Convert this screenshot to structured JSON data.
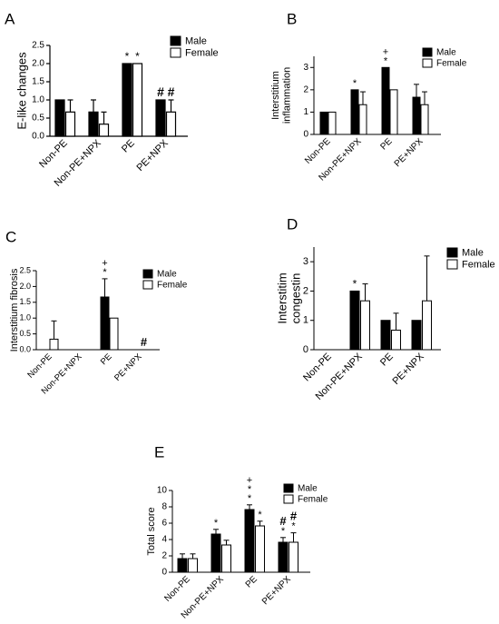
{
  "legend_male": "Male",
  "legend_female": "Female",
  "colors": {
    "male": "#000000",
    "female": "#ffffff",
    "stroke": "#000000"
  },
  "chart_data": [
    {
      "id": "A",
      "panel_label": "A",
      "type": "bar",
      "categories": [
        "Non-PE",
        "Non-PE+NPX",
        "PE",
        "PE+NPX"
      ],
      "ylabel": "E-like changes",
      "ylim": [
        0,
        2.5
      ],
      "yticks": [
        0,
        0.5,
        1.0,
        1.5,
        2.0,
        2.5
      ],
      "ytick_labels": [
        "0.0",
        "0.5",
        "1.0",
        "1.5",
        "2.0",
        "2.5"
      ],
      "series": [
        {
          "name": "Male",
          "values": [
            1,
            0.667,
            2,
            1
          ],
          "errors": [
            0,
            0.333,
            0,
            0
          ],
          "marks": [
            [],
            [],
            [
              "*"
            ],
            [
              "#"
            ]
          ]
        },
        {
          "name": "Female",
          "values": [
            0.667,
            0.333,
            2,
            0.667
          ],
          "errors": [
            0.333,
            0.333,
            0,
            0.333
          ],
          "marks": [
            [],
            [],
            [
              "*"
            ],
            [
              "#"
            ]
          ]
        }
      ]
    },
    {
      "id": "B",
      "panel_label": "B",
      "type": "bar",
      "categories": [
        "Non-PE",
        "Non-PE+NPX",
        "PE",
        "PE+NPX"
      ],
      "ylabel": "Interstitium inflammation",
      "ylabel_lines": [
        "Interstitium",
        "inflammation"
      ],
      "ylim": [
        0,
        3.5
      ],
      "yticks": [
        0,
        1,
        2,
        3
      ],
      "ytick_labels": [
        "0",
        "1",
        "2",
        "3"
      ],
      "series": [
        {
          "name": "Male",
          "values": [
            1,
            2,
            3,
            1.667
          ],
          "errors": [
            0,
            0,
            0,
            0.577
          ],
          "marks": [
            [],
            [
              "*"
            ],
            [
              "*",
              "+"
            ],
            []
          ]
        },
        {
          "name": "Female",
          "values": [
            1,
            1.333,
            2,
            1.333
          ],
          "errors": [
            0,
            0.577,
            0,
            0.577
          ],
          "marks": [
            [],
            [],
            [],
            []
          ]
        }
      ]
    },
    {
      "id": "C",
      "panel_label": "C",
      "type": "bar",
      "categories": [
        "Non-PE",
        "Non-PE+NPX",
        "PE",
        "PE+NPX"
      ],
      "ylabel": "Interstitium fibrosis",
      "ylim": [
        0,
        2.5
      ],
      "yticks": [
        0,
        0.5,
        1.0,
        1.5,
        2.0,
        2.5
      ],
      "ytick_labels": [
        "0.0",
        "0.5",
        "1.0",
        "1.5",
        "2.0",
        "2.5"
      ],
      "series": [
        {
          "name": "Male",
          "values": [
            0,
            0,
            1.667,
            0
          ],
          "errors": [
            0,
            0,
            0.577,
            0
          ],
          "marks": [
            [],
            [],
            [
              "*",
              "+"
            ],
            []
          ]
        },
        {
          "name": "Female",
          "values": [
            0.333,
            0,
            1,
            0
          ],
          "errors": [
            0.577,
            0,
            0,
            0
          ],
          "marks": [
            [],
            [],
            [],
            [
              "#"
            ]
          ]
        }
      ]
    },
    {
      "id": "D",
      "panel_label": "D",
      "type": "bar",
      "categories": [
        "Non-PE",
        "Non-PE+NPX",
        "PE",
        "PE+NPX"
      ],
      "ylabel": "Interstitim congestin",
      "ylabel_lines": [
        "Interstitim",
        "congestin"
      ],
      "ylim": [
        0,
        3.5
      ],
      "yticks": [
        0,
        1,
        2,
        3
      ],
      "ytick_labels": [
        "0",
        "1",
        "2",
        "3"
      ],
      "series": [
        {
          "name": "Male",
          "values": [
            0,
            2,
            1,
            1
          ],
          "errors": [
            0,
            0,
            0,
            0
          ],
          "marks": [
            [],
            [
              "*"
            ],
            [],
            []
          ]
        },
        {
          "name": "Female",
          "values": [
            0,
            1.667,
            0.667,
            1.667
          ],
          "errors": [
            0,
            0.577,
            0.577,
            1.528
          ],
          "marks": [
            [],
            [],
            [],
            []
          ]
        }
      ]
    },
    {
      "id": "E",
      "panel_label": "E",
      "type": "bar",
      "categories": [
        "Non-PE",
        "Non-PE+NPX",
        "PE",
        "PE+NPX"
      ],
      "ylabel": "Total score",
      "ylim": [
        0,
        10
      ],
      "yticks": [
        0,
        2,
        4,
        6,
        8,
        10
      ],
      "ytick_labels": [
        "0",
        "2",
        "4",
        "6",
        "8",
        "10"
      ],
      "series": [
        {
          "name": "Male",
          "values": [
            1.667,
            4.667,
            7.667,
            3.667
          ],
          "errors": [
            0.577,
            0.577,
            0.577,
            0.577
          ],
          "marks": [
            [],
            [
              "*"
            ],
            [
              "*",
              "*",
              "+"
            ],
            [
              "*",
              "#"
            ]
          ]
        },
        {
          "name": "Female",
          "values": [
            1.667,
            3.333,
            5.667,
            3.667
          ],
          "errors": [
            0.577,
            0.577,
            0.577,
            1.155
          ],
          "marks": [
            [],
            [],
            [
              "*"
            ],
            [
              "*",
              "#"
            ]
          ]
        }
      ]
    }
  ]
}
